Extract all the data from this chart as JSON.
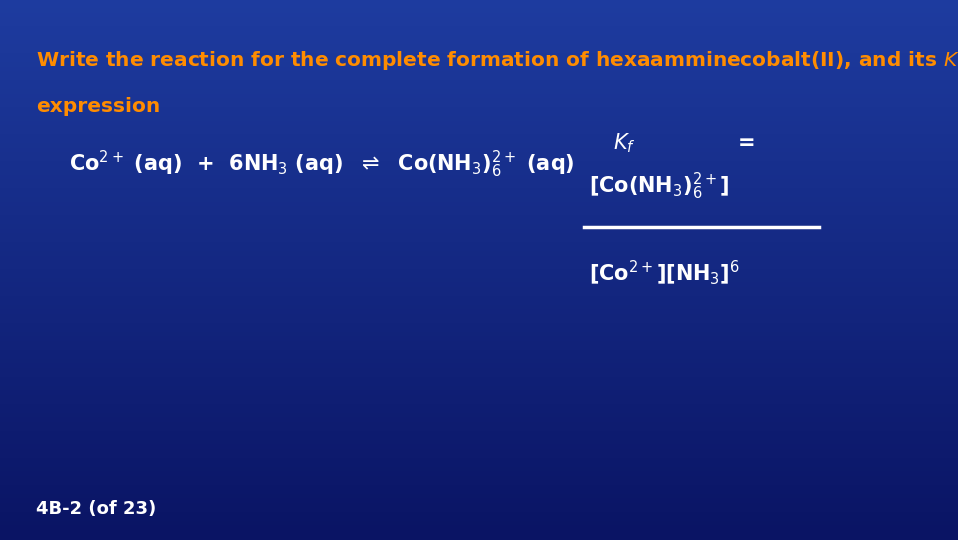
{
  "bg_color": "#1a3a8a",
  "title_color": "#FF8C00",
  "white_color": "#FFFFFF",
  "slide_label": "4B-2 (of 23)",
  "slide_label_fontsize": 13,
  "title_fontsize": 14.5,
  "eq_fontsize": 15,
  "kf_fontsize": 15
}
